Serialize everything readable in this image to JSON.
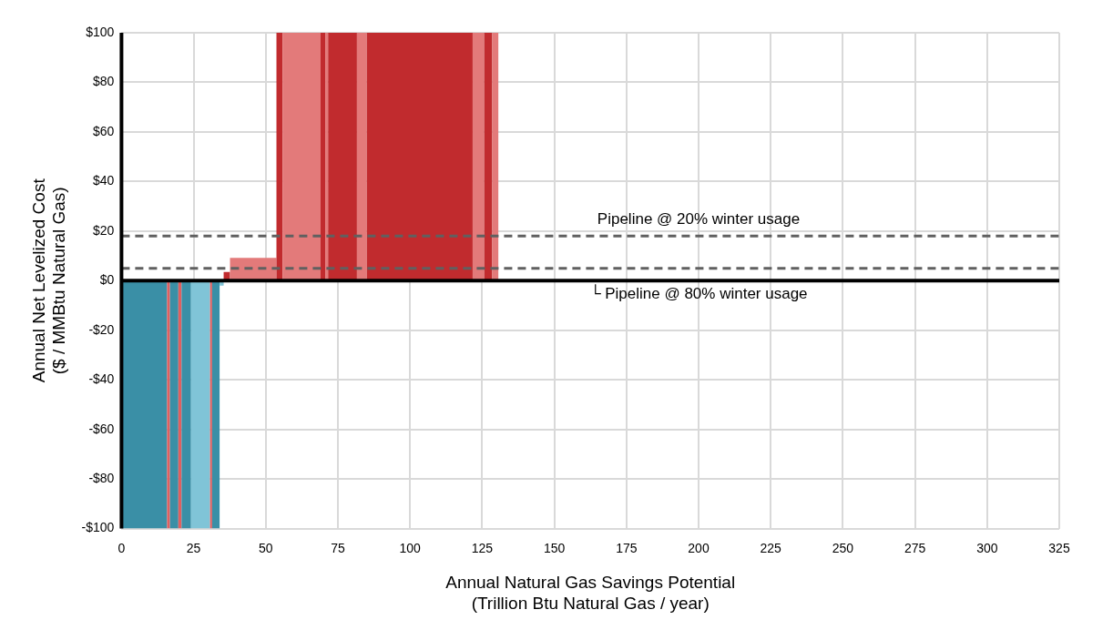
{
  "chart_data": {
    "type": "bar",
    "xlabel": "Annual Natural Gas Savings Potential\n(Trillion Btu Natural Gas / year)",
    "ylabel": "Annual Net Levelized Cost\n($ / MMBtu Natural Gas)",
    "x": [
      7.9,
      16.3,
      18.25,
      20.25,
      22.45,
      27.4,
      31.05,
      32.7,
      34.7,
      36.5,
      45.65,
      54.75,
      62.4,
      69.8,
      71.1,
      76.6,
      83.3,
      103.35,
      123.7,
      127.1,
      129.55
    ],
    "values": [
      -100,
      -100,
      -100,
      -100,
      -100,
      -100,
      -100,
      -100,
      -2,
      3.5,
      9.2,
      100,
      100,
      100,
      100,
      100,
      100,
      100,
      100,
      100,
      100
    ],
    "colors": [
      "#3a8fa6",
      "#e06060",
      "#3a8fa6",
      "#e06060",
      "#3a8fa6",
      "#80c4d7",
      "#e06060",
      "#3a8fa6",
      "#80c4d7",
      "#c12b2e",
      "#e37a7a",
      "#c12b2e",
      "#e37a7a",
      "#c12b2e",
      "#e37a7a",
      "#c12b2e",
      "#e37a7a",
      "#c12b2e",
      "#e37a7a",
      "#c12b2e",
      "#e37a7a"
    ],
    "xlim": [
      0,
      325
    ],
    "xticks": [
      0,
      25,
      50,
      75,
      100,
      125,
      150,
      175,
      200,
      225,
      250,
      275,
      300,
      325
    ],
    "ylim": [
      -100,
      100
    ],
    "yticks": [
      {
        "value": -100,
        "label": "-$100"
      },
      {
        "value": -80,
        "label": "-$80"
      },
      {
        "value": -60,
        "label": "-$60"
      },
      {
        "value": -40,
        "label": "-$40"
      },
      {
        "value": -20,
        "label": "-$20"
      },
      {
        "value": 0,
        "label": "$0"
      },
      {
        "value": 20,
        "label": "$20"
      },
      {
        "value": 40,
        "label": "$40"
      },
      {
        "value": 60,
        "label": "$60"
      },
      {
        "value": 80,
        "label": "$80"
      },
      {
        "value": 100,
        "label": "$100"
      }
    ],
    "ref_lines": [
      {
        "axis": "y",
        "value": 18,
        "label": "Pipeline @ 20% winter usage",
        "color": "#606060",
        "line_style": "dashed"
      },
      {
        "axis": "y",
        "value": 5,
        "label": "└ Pipeline @ 80% winter usage",
        "color": "#606060",
        "line_style": "dashed"
      }
    ],
    "grid": true,
    "legend": false
  }
}
